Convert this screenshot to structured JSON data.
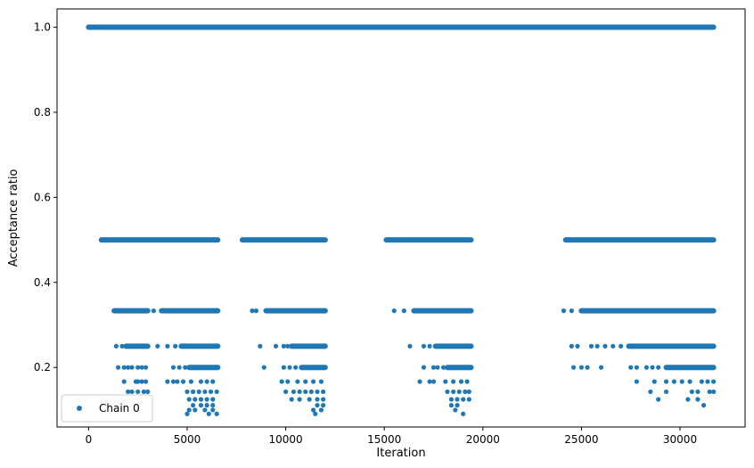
{
  "chart_data": {
    "type": "scatter",
    "xlabel": "Iteration",
    "ylabel": "Acceptance ratio",
    "xlim": [
      -1600,
      33300
    ],
    "ylim": [
      0.06,
      1.043
    ],
    "x_ticks": [
      {
        "value": 0,
        "label": "0"
      },
      {
        "value": 5000,
        "label": "5000"
      },
      {
        "value": 10000,
        "label": "10000"
      },
      {
        "value": 15000,
        "label": "15000"
      },
      {
        "value": 20000,
        "label": "20000"
      },
      {
        "value": 25000,
        "label": "25000"
      },
      {
        "value": 30000,
        "label": "30000"
      }
    ],
    "y_ticks": [
      {
        "value": 0.2,
        "label": "0.2"
      },
      {
        "value": 0.4,
        "label": "0.4"
      },
      {
        "value": 0.6,
        "label": "0.6"
      },
      {
        "value": 0.8,
        "label": "0.8"
      },
      {
        "value": 1.0,
        "label": "1.0"
      }
    ],
    "grid": false,
    "legend": {
      "position": "lower-left",
      "entries": [
        "Chain 0"
      ]
    },
    "series": [
      {
        "name": "Chain 0",
        "color": "#1f77b4",
        "marker": "circle",
        "dense_ranges": [
          {
            "y": 1.0,
            "x_start": 0,
            "x_end": 31700
          },
          {
            "y": 0.5,
            "x_start": 650,
            "x_end": 6550
          },
          {
            "y": 0.5,
            "x_start": 7800,
            "x_end": 12000
          },
          {
            "y": 0.5,
            "x_start": 15100,
            "x_end": 19400
          },
          {
            "y": 0.5,
            "x_start": 24200,
            "x_end": 31700
          },
          {
            "y": 0.3333,
            "x_start": 1300,
            "x_end": 3000
          },
          {
            "y": 0.3333,
            "x_start": 3700,
            "x_end": 6550
          },
          {
            "y": 0.3333,
            "x_start": 9000,
            "x_end": 12000
          },
          {
            "y": 0.3333,
            "x_start": 16500,
            "x_end": 19400
          },
          {
            "y": 0.3333,
            "x_start": 25000,
            "x_end": 31700
          },
          {
            "y": 0.25,
            "x_start": 1900,
            "x_end": 3000
          },
          {
            "y": 0.25,
            "x_start": 4700,
            "x_end": 6550
          },
          {
            "y": 0.25,
            "x_start": 10300,
            "x_end": 12000
          },
          {
            "y": 0.25,
            "x_start": 17600,
            "x_end": 19400
          },
          {
            "y": 0.25,
            "x_start": 27400,
            "x_end": 31700
          },
          {
            "y": 0.2,
            "x_start": 5100,
            "x_end": 6550
          },
          {
            "y": 0.2,
            "x_start": 10800,
            "x_end": 12000
          },
          {
            "y": 0.2,
            "x_start": 18200,
            "x_end": 19400
          },
          {
            "y": 0.2,
            "x_start": 29300,
            "x_end": 31700
          }
        ],
        "points": [
          [
            1500,
            0.3333
          ],
          [
            3300,
            0.3333
          ],
          [
            8300,
            0.3333
          ],
          [
            8500,
            0.3333
          ],
          [
            15500,
            0.3333
          ],
          [
            16000,
            0.3333
          ],
          [
            24100,
            0.3333
          ],
          [
            24500,
            0.3333
          ],
          [
            1400,
            0.25
          ],
          [
            1700,
            0.25
          ],
          [
            3500,
            0.25
          ],
          [
            4000,
            0.25
          ],
          [
            4400,
            0.25
          ],
          [
            8700,
            0.25
          ],
          [
            9500,
            0.25
          ],
          [
            9900,
            0.25
          ],
          [
            10100,
            0.25
          ],
          [
            16300,
            0.25
          ],
          [
            17000,
            0.25
          ],
          [
            17300,
            0.25
          ],
          [
            24500,
            0.25
          ],
          [
            24800,
            0.25
          ],
          [
            25500,
            0.25
          ],
          [
            25800,
            0.25
          ],
          [
            26200,
            0.25
          ],
          [
            26600,
            0.25
          ],
          [
            27000,
            0.25
          ],
          [
            1500,
            0.2
          ],
          [
            1800,
            0.2
          ],
          [
            2000,
            0.2
          ],
          [
            2200,
            0.2
          ],
          [
            2500,
            0.2
          ],
          [
            2700,
            0.2
          ],
          [
            2900,
            0.2
          ],
          [
            4300,
            0.2
          ],
          [
            4600,
            0.2
          ],
          [
            4900,
            0.2
          ],
          [
            8900,
            0.2
          ],
          [
            9900,
            0.2
          ],
          [
            10200,
            0.2
          ],
          [
            10500,
            0.2
          ],
          [
            17000,
            0.2
          ],
          [
            17500,
            0.2
          ],
          [
            17700,
            0.2
          ],
          [
            18000,
            0.2
          ],
          [
            24600,
            0.2
          ],
          [
            25000,
            0.2
          ],
          [
            25300,
            0.2
          ],
          [
            26000,
            0.2
          ],
          [
            27500,
            0.2
          ],
          [
            27800,
            0.2
          ],
          [
            28300,
            0.2
          ],
          [
            28600,
            0.2
          ],
          [
            28900,
            0.2
          ],
          [
            1800,
            0.1667
          ],
          [
            2400,
            0.1667
          ],
          [
            2500,
            0.1667
          ],
          [
            2700,
            0.1667
          ],
          [
            2900,
            0.1667
          ],
          [
            4000,
            0.1667
          ],
          [
            4300,
            0.1667
          ],
          [
            4500,
            0.1667
          ],
          [
            4800,
            0.1667
          ],
          [
            5200,
            0.1667
          ],
          [
            5700,
            0.1667
          ],
          [
            6000,
            0.1667
          ],
          [
            6300,
            0.1667
          ],
          [
            9800,
            0.1667
          ],
          [
            10100,
            0.1667
          ],
          [
            10600,
            0.1667
          ],
          [
            11000,
            0.1667
          ],
          [
            11400,
            0.1667
          ],
          [
            11800,
            0.1667
          ],
          [
            16800,
            0.1667
          ],
          [
            17300,
            0.1667
          ],
          [
            17500,
            0.1667
          ],
          [
            18100,
            0.1667
          ],
          [
            18500,
            0.1667
          ],
          [
            18900,
            0.1667
          ],
          [
            19200,
            0.1667
          ],
          [
            27800,
            0.1667
          ],
          [
            28700,
            0.1667
          ],
          [
            29300,
            0.1667
          ],
          [
            29700,
            0.1667
          ],
          [
            30100,
            0.1667
          ],
          [
            30500,
            0.1667
          ],
          [
            31100,
            0.1667
          ],
          [
            31400,
            0.1667
          ],
          [
            31700,
            0.1667
          ],
          [
            2000,
            0.1429
          ],
          [
            2200,
            0.1429
          ],
          [
            2500,
            0.1429
          ],
          [
            2800,
            0.1429
          ],
          [
            3000,
            0.1429
          ],
          [
            5000,
            0.1429
          ],
          [
            5300,
            0.1429
          ],
          [
            5600,
            0.1429
          ],
          [
            5900,
            0.1429
          ],
          [
            6200,
            0.1429
          ],
          [
            6500,
            0.1429
          ],
          [
            10000,
            0.1429
          ],
          [
            10400,
            0.1429
          ],
          [
            10700,
            0.1429
          ],
          [
            11000,
            0.1429
          ],
          [
            11300,
            0.1429
          ],
          [
            11600,
            0.1429
          ],
          [
            11900,
            0.1429
          ],
          [
            18200,
            0.1429
          ],
          [
            18500,
            0.1429
          ],
          [
            18800,
            0.1429
          ],
          [
            19100,
            0.1429
          ],
          [
            19300,
            0.1429
          ],
          [
            28500,
            0.1429
          ],
          [
            29300,
            0.1429
          ],
          [
            30600,
            0.1429
          ],
          [
            30900,
            0.1429
          ],
          [
            31500,
            0.1429
          ],
          [
            31700,
            0.1429
          ],
          [
            1700,
            0.125
          ],
          [
            2400,
            0.125
          ],
          [
            5100,
            0.125
          ],
          [
            5400,
            0.125
          ],
          [
            5700,
            0.125
          ],
          [
            6000,
            0.125
          ],
          [
            6300,
            0.125
          ],
          [
            10300,
            0.125
          ],
          [
            10700,
            0.125
          ],
          [
            11200,
            0.125
          ],
          [
            11600,
            0.125
          ],
          [
            11900,
            0.125
          ],
          [
            18400,
            0.125
          ],
          [
            18700,
            0.125
          ],
          [
            19000,
            0.125
          ],
          [
            19300,
            0.125
          ],
          [
            28900,
            0.125
          ],
          [
            30400,
            0.125
          ],
          [
            30900,
            0.125
          ],
          [
            5300,
            0.1111
          ],
          [
            5700,
            0.1111
          ],
          [
            6000,
            0.1111
          ],
          [
            6300,
            0.1111
          ],
          [
            11600,
            0.1111
          ],
          [
            11900,
            0.1111
          ],
          [
            18400,
            0.1111
          ],
          [
            18700,
            0.1111
          ],
          [
            31200,
            0.1111
          ],
          [
            5100,
            0.1
          ],
          [
            5400,
            0.1
          ],
          [
            5900,
            0.1
          ],
          [
            6300,
            0.1
          ],
          [
            11400,
            0.1
          ],
          [
            11800,
            0.1
          ],
          [
            18600,
            0.1
          ],
          [
            5000,
            0.0909
          ],
          [
            6100,
            0.0909
          ],
          [
            6500,
            0.0909
          ],
          [
            11500,
            0.0909
          ],
          [
            19000,
            0.0909
          ]
        ]
      }
    ]
  }
}
